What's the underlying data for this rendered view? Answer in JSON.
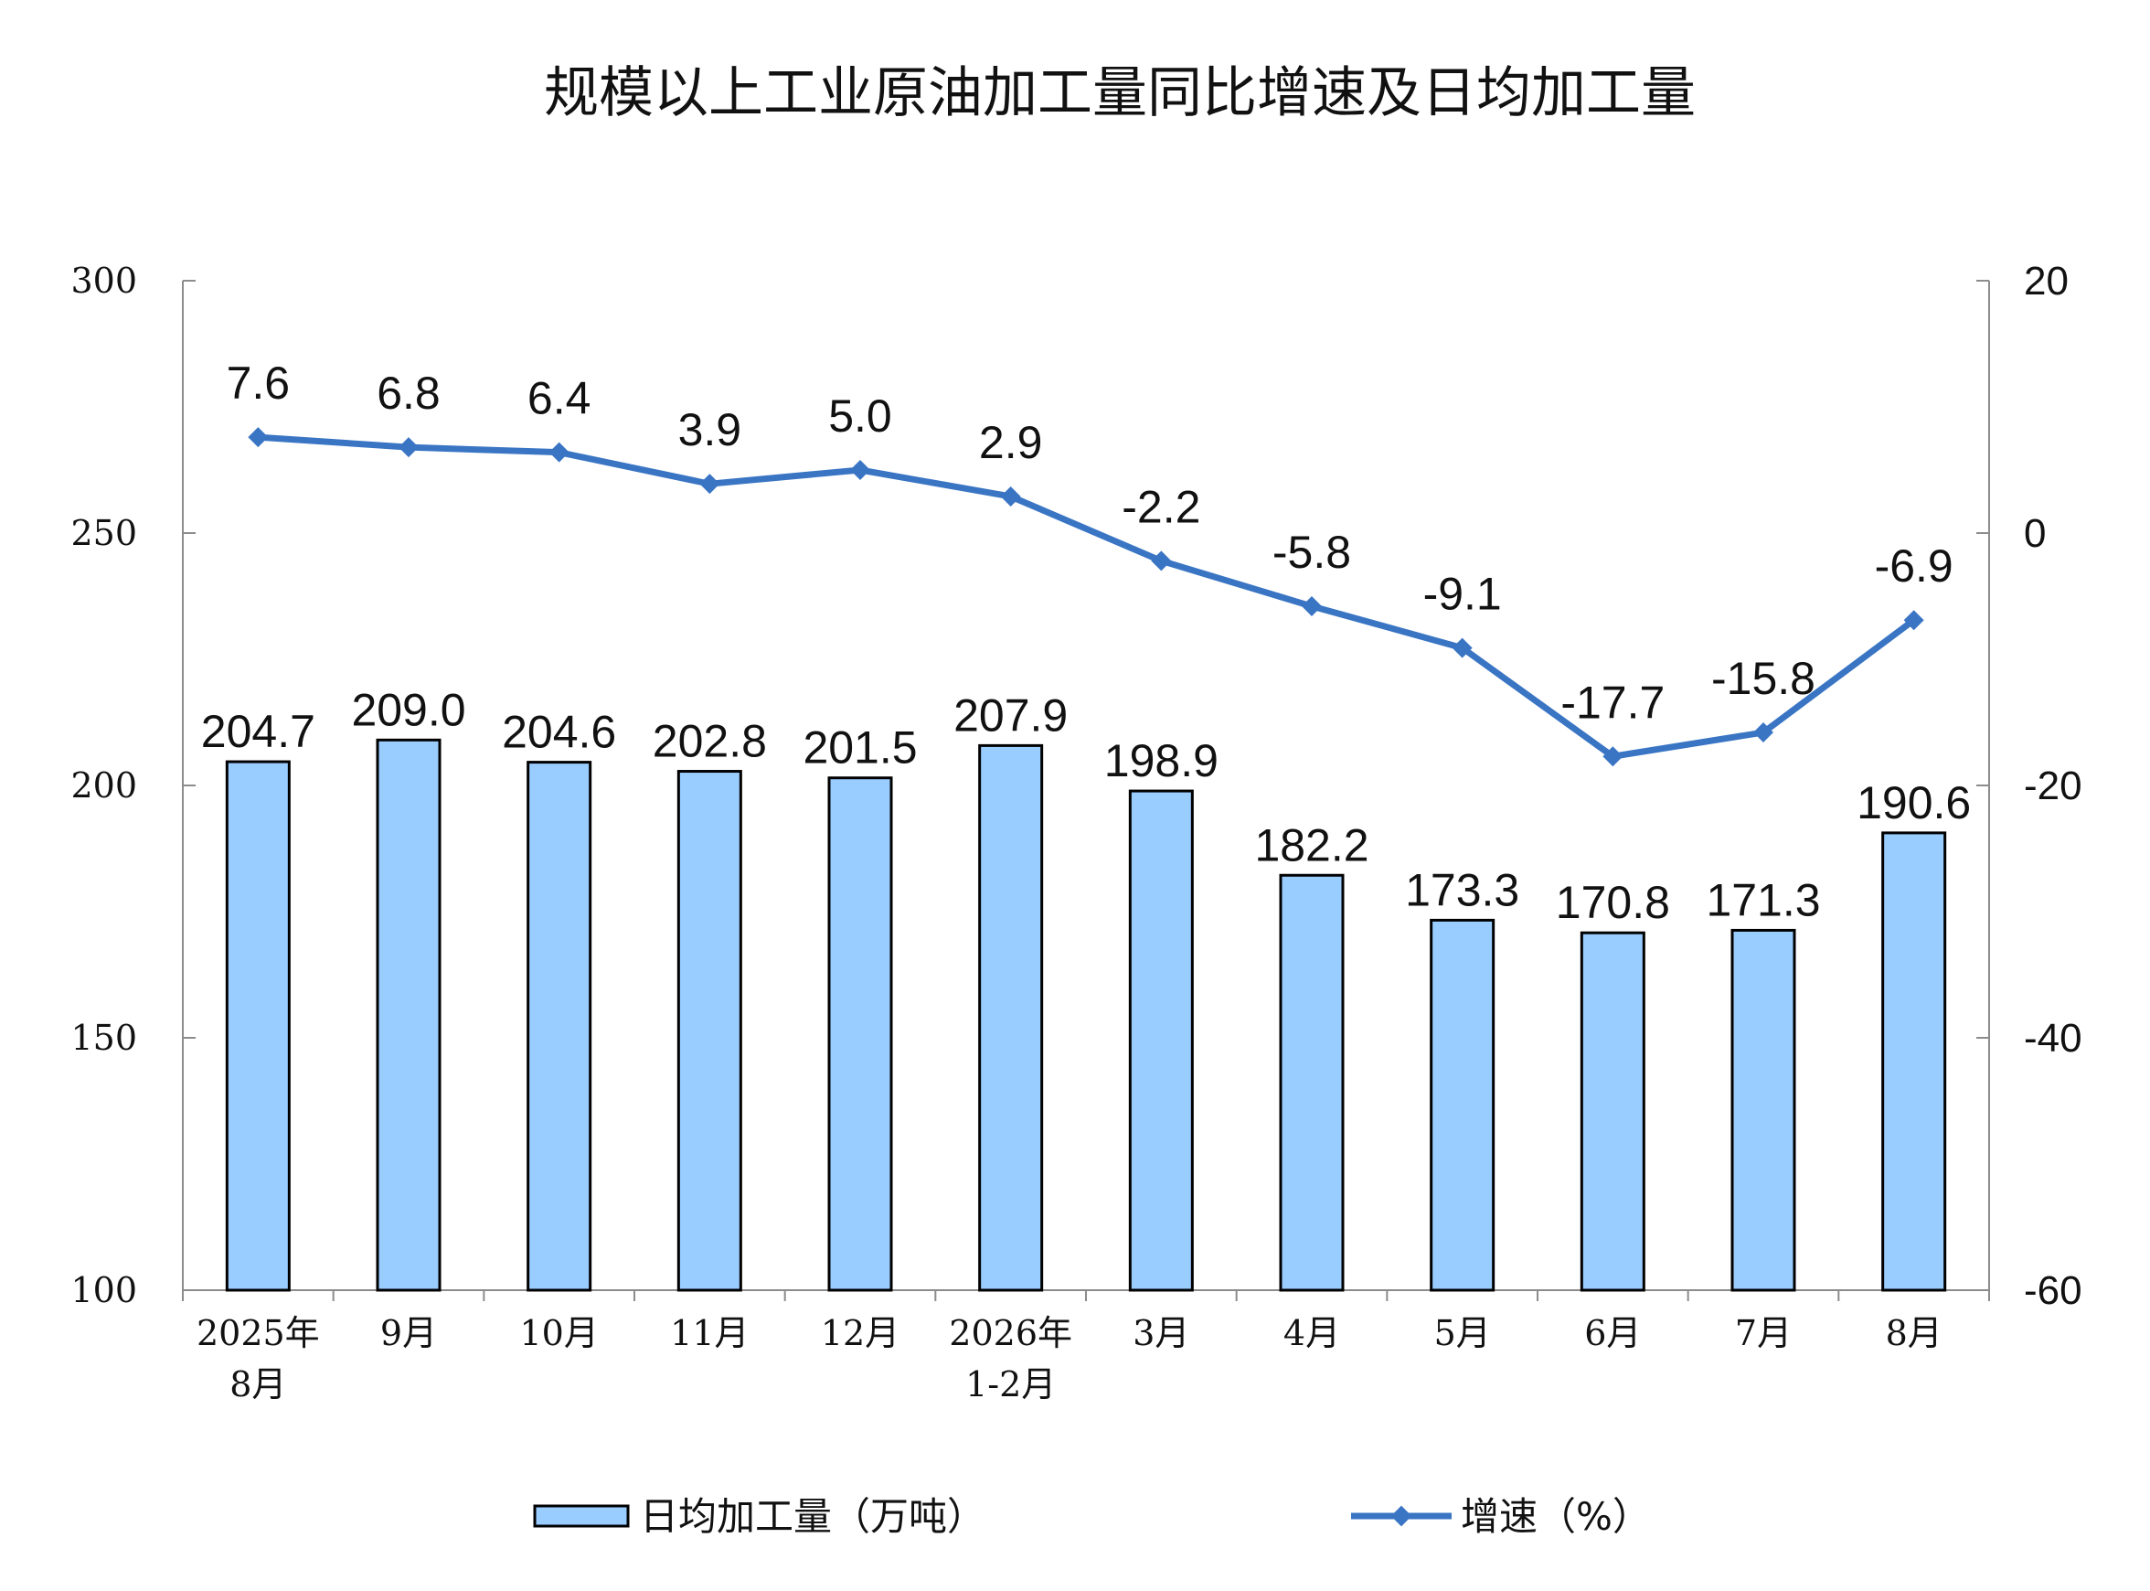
{
  "chart_data": {
    "type": "bar",
    "title": "规模以上工业原油加工量同比增速及日均加工量",
    "categories": [
      [
        "2025年",
        "8月"
      ],
      [
        "9月"
      ],
      [
        "10月"
      ],
      [
        "11月"
      ],
      [
        "12月"
      ],
      [
        "2026年",
        "1-2月"
      ],
      [
        "3月"
      ],
      [
        "4月"
      ],
      [
        "5月"
      ],
      [
        "6月"
      ],
      [
        "7月"
      ],
      [
        "8月"
      ]
    ],
    "series": [
      {
        "name": "日均加工量（万吨）",
        "type": "bar",
        "axis": "left",
        "color": "#99CCFF",
        "values": [
          204.7,
          209.0,
          204.6,
          202.8,
          201.5,
          207.9,
          198.9,
          182.2,
          173.3,
          170.8,
          171.3,
          190.6
        ],
        "labels": [
          "204.7",
          "209.0",
          "204.6",
          "202.8",
          "201.5",
          "207.9",
          "198.9",
          "182.2",
          "173.3",
          "170.8",
          "171.3",
          "190.6"
        ]
      },
      {
        "name": "增速（%）",
        "type": "line",
        "axis": "right",
        "color": "#3A75C4",
        "values": [
          7.6,
          6.8,
          6.4,
          3.9,
          5.0,
          2.9,
          -2.2,
          -5.8,
          -9.1,
          -17.7,
          -15.8,
          -6.9
        ],
        "labels": [
          "7.6",
          "6.8",
          "6.4",
          "3.9",
          "5.0",
          "2.9",
          "-2.2",
          "-5.8",
          "-9.1",
          "-17.7",
          "-15.8",
          "-6.9"
        ]
      }
    ],
    "y_left": {
      "min": 100,
      "max": 300,
      "ticks": [
        "100",
        "150",
        "200",
        "250",
        "300"
      ]
    },
    "y_right": {
      "min": -60,
      "max": 20,
      "ticks": [
        "-60",
        "-40",
        "-20",
        "0",
        "20"
      ]
    },
    "legend": {
      "position": "bottom"
    },
    "grid": false
  }
}
